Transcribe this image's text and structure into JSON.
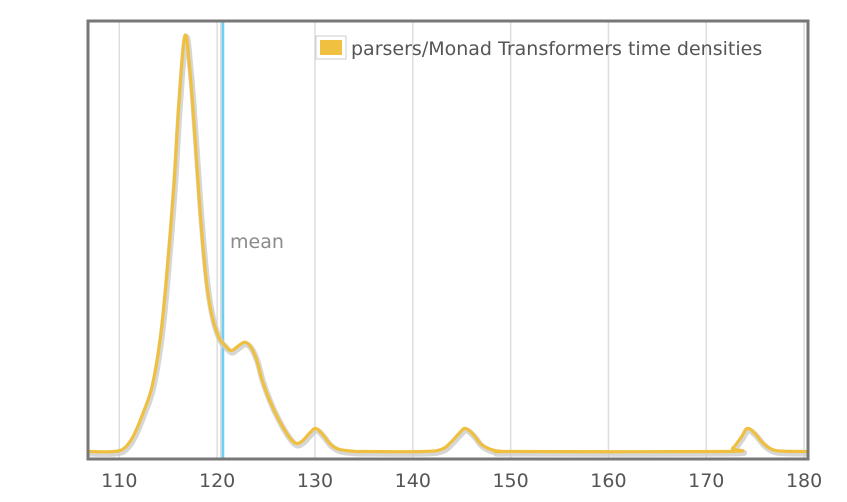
{
  "chart_data": {
    "type": "line",
    "legend": {
      "label": "parsers/Monad Transformers time densities",
      "placement": "top-right",
      "swatch_color": "#f0c040"
    },
    "colors": {
      "density": "#efc040",
      "mean_line": "#6fcff0",
      "grid": "#dddddd",
      "frame": "#777777",
      "shadow": "#cccccc"
    },
    "xlim": [
      106.8,
      180.4
    ],
    "ylim": [
      0,
      1
    ],
    "grid": true,
    "x_ticks": [
      110,
      120,
      130,
      140,
      150,
      160,
      170,
      180
    ],
    "x_tick_labels": [
      "110",
      "120",
      "130",
      "140",
      "150",
      "160",
      "170",
      "180"
    ],
    "mean": {
      "x": 120.6,
      "label": "mean"
    },
    "series": [
      {
        "x": [
          106.8,
          109.5,
          110.6,
          111.5,
          112.4,
          113.4,
          114.3,
          115.0,
          115.6,
          116.1,
          116.7,
          117.2,
          117.7,
          118.2,
          118.7,
          119.1,
          119.6,
          120.2,
          120.7,
          121.4,
          122.1,
          122.8,
          123.4,
          124.0,
          124.6,
          125.3,
          126.2,
          127.2,
          128.0,
          128.7,
          129.5,
          130.1,
          130.8,
          131.6,
          132.5,
          133.8,
          135.0,
          141.0,
          142.9,
          143.9,
          144.8,
          145.4,
          146.2,
          147.0,
          148.1,
          149.2,
          150.5,
          171.8,
          172.7,
          173.6,
          174.2,
          175.0,
          175.8,
          176.7,
          177.8,
          180.4
        ],
        "y": [
          0.0,
          0.0,
          0.01,
          0.04,
          0.09,
          0.16,
          0.29,
          0.46,
          0.64,
          0.83,
          0.988,
          0.91,
          0.76,
          0.59,
          0.45,
          0.37,
          0.31,
          0.27,
          0.255,
          0.24,
          0.25,
          0.26,
          0.25,
          0.22,
          0.17,
          0.125,
          0.08,
          0.04,
          0.02,
          0.025,
          0.045,
          0.055,
          0.04,
          0.017,
          0.005,
          0.001,
          0.0,
          0.0,
          0.005,
          0.022,
          0.045,
          0.055,
          0.04,
          0.017,
          0.004,
          0.0,
          0.0,
          0.0,
          0.008,
          0.035,
          0.055,
          0.042,
          0.02,
          0.005,
          0.001,
          0.0
        ]
      }
    ]
  }
}
